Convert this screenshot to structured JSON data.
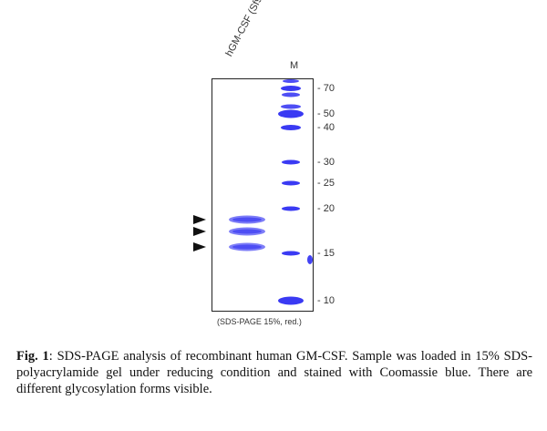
{
  "sample_lane_label": "hGM-CSF (Sf9)",
  "marker_lane_label": "M",
  "mw_markers": [
    {
      "label": "- 70",
      "kda": 70
    },
    {
      "label": "- 50",
      "kda": 50
    },
    {
      "label": "- 40",
      "kda": 40
    },
    {
      "label": "- 30",
      "kda": 30
    },
    {
      "label": "- 25",
      "kda": 25
    },
    {
      "label": "- 20",
      "kda": 20
    },
    {
      "label": "- 15",
      "kda": 15
    },
    {
      "label": "- 10",
      "kda": 10
    }
  ],
  "sample_bands_kda": [
    19.5,
    18,
    16
  ],
  "gel_note": "(SDS-PAGE 15%, red.)",
  "caption": {
    "label": "Fig. 1",
    "text": ": SDS-PAGE analysis of recombinant human GM-CSF. Sample was loaded in 15% SDS-polyacrylamide gel under reducing condition and stained with Coomassie blue. There are different glycosylation forms visible."
  },
  "colors": {
    "band": "#2f2ff2",
    "band_light": "#7070f6",
    "arrow": "#111111"
  }
}
